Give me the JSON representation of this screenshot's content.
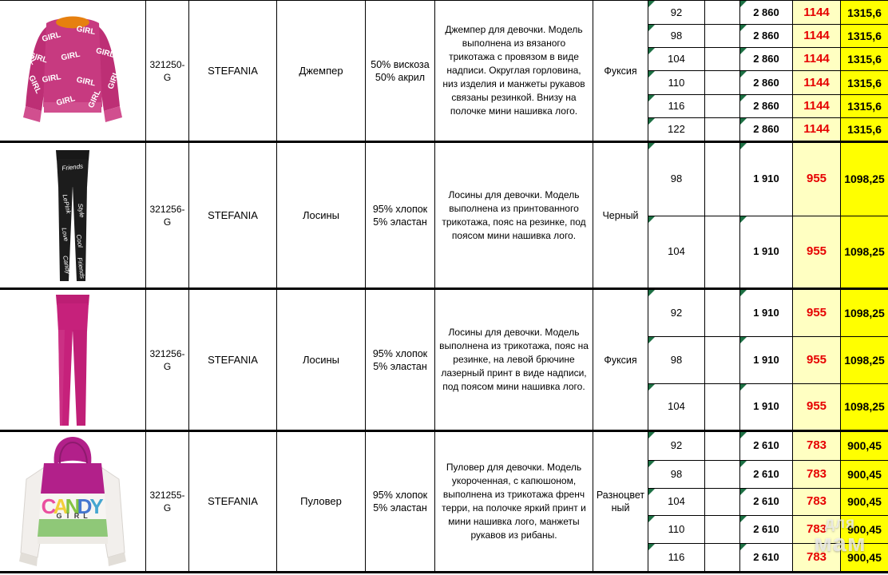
{
  "table": {
    "rows": [
      {
        "image": "sweater",
        "print": {
          "word": "GIRL"
        },
        "article": "321250-G",
        "brand": "STEFANIA",
        "type": "Джемпер",
        "composition": "50% вискоза 50% акрил",
        "description": "Джемпер для девочки. Модель выполнена из вязаного трикотажа с провязом в виде надписи. Округлая горловина, низ изделия и манжеты рукавов связаны резинкой. Внизу на полочке мини нашивка лого.",
        "color": "Фуксия",
        "sizes": [
          {
            "size": "92",
            "price_base": "2 860",
            "price_opt": "1144",
            "price_rrp": "1315,6"
          },
          {
            "size": "98",
            "price_base": "2 860",
            "price_opt": "1144",
            "price_rrp": "1315,6"
          },
          {
            "size": "104",
            "price_base": "2 860",
            "price_opt": "1144",
            "price_rrp": "1315,6"
          },
          {
            "size": "110",
            "price_base": "2 860",
            "price_opt": "1144",
            "price_rrp": "1315,6"
          },
          {
            "size": "116",
            "price_base": "2 860",
            "price_opt": "1144",
            "price_rrp": "1315,6"
          },
          {
            "size": "122",
            "price_base": "2 860",
            "price_opt": "1144",
            "price_rrp": "1315,6"
          }
        ]
      },
      {
        "image": "black-leggings",
        "print": {
          "words": [
            "Friends",
            "LePink",
            "Style",
            "Love",
            "Cool",
            "Candy"
          ]
        },
        "article": "321256-G",
        "brand": "STEFANIA",
        "type": "Лосины",
        "composition": "95% хлопок 5% эластан",
        "description": "Лосины для девочки. Модель выполнена из принтованного трикотажа, пояс на резинке, под поясом мини нашивка лого.",
        "color": "Черный",
        "sizes": [
          {
            "size": "98",
            "price_base": "1 910",
            "price_opt": "955",
            "price_rrp": "1098,25"
          },
          {
            "size": "104",
            "price_base": "1 910",
            "price_opt": "955",
            "price_rrp": "1098,25"
          }
        ]
      },
      {
        "image": "pink-leggings",
        "print": {},
        "article": "321256-G",
        "brand": "STEFANIA",
        "type": "Лосины",
        "composition": "95% хлопок 5% эластан",
        "description": "Лосины для девочки. Модель выполнена из трикотажа, пояс на резинке, на левой брючине лазерный принт в виде надписи, под поясом мини нашивка лого.",
        "color": "Фуксия",
        "sizes": [
          {
            "size": "92",
            "price_base": "1 910",
            "price_opt": "955",
            "price_rrp": "1098,25"
          },
          {
            "size": "98",
            "price_base": "1 910",
            "price_opt": "955",
            "price_rrp": "1098,25"
          },
          {
            "size": "104",
            "price_base": "1 910",
            "price_opt": "955",
            "price_rrp": "1098,25"
          }
        ]
      },
      {
        "image": "hoodie",
        "print": {
          "line1": "CANDY",
          "line2": "GIRL"
        },
        "article": "321255-G",
        "brand": "STEFANIA",
        "type": "Пуловер",
        "composition": "95% хлопок 5% эластан",
        "description": "Пуловер для девочки. Модель укороченная, с капюшоном, выполнена из трикотажа френч терри, на полочке яркий принт и мини нашивка лого, манжеты рукавов из рибаны.",
        "color": "Разноцветный",
        "sizes": [
          {
            "size": "92",
            "price_base": "2 610",
            "price_opt": "783",
            "price_rrp": "900,45"
          },
          {
            "size": "98",
            "price_base": "2 610",
            "price_opt": "783",
            "price_rrp": "900,45"
          },
          {
            "size": "104",
            "price_base": "2 610",
            "price_opt": "783",
            "price_rrp": "900,45"
          },
          {
            "size": "110",
            "price_base": "2 610",
            "price_opt": "783",
            "price_rrp": "900,45"
          },
          {
            "size": "116",
            "price_base": "2 610",
            "price_opt": "783",
            "price_rrp": "900,45"
          }
        ]
      }
    ]
  },
  "watermark": {
    "line1": "для",
    "line2": "мам"
  },
  "colors": {
    "opt_price_bg": "#ffffc2",
    "rrp_price_bg": "#ffff00",
    "opt_price_text": "#e60000",
    "cell_marker_green": "#1d7044",
    "fuchsia_product": "#c73a80"
  }
}
